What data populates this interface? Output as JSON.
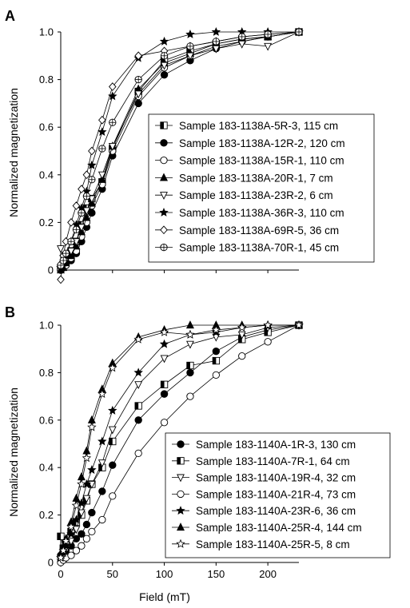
{
  "figure": {
    "xlabel": "Field (mT)"
  },
  "chart_data": [
    {
      "type": "line",
      "panel": "A",
      "ylabel": "Normalized magnetization",
      "xlim": [
        0,
        230
      ],
      "ylim": [
        0,
        1.0
      ],
      "yticks": [
        "0",
        "0.2",
        "0.4",
        "0.6",
        "0.8",
        "1.0"
      ],
      "legend_position": "right",
      "series": [
        {
          "name": "Sample 183-1138A-5R-3, 115 cm",
          "marker": "half-square",
          "x": [
            0,
            2.5,
            5,
            10,
            15,
            20,
            25,
            30,
            40,
            50,
            75,
            100,
            125,
            150,
            175,
            200,
            230
          ],
          "y": [
            0.01,
            0.02,
            0.04,
            0.08,
            0.12,
            0.19,
            0.26,
            0.3,
            0.37,
            0.51,
            0.75,
            0.88,
            0.92,
            0.95,
            0.97,
            0.98,
            1.0
          ]
        },
        {
          "name": "Sample 183-1138A-12R-2, 120 cm",
          "marker": "filled-circle",
          "x": [
            0,
            2.5,
            5,
            10,
            15,
            20,
            25,
            30,
            40,
            50,
            75,
            100,
            125,
            150,
            175,
            200,
            230
          ],
          "y": [
            0.0,
            0.01,
            0.02,
            0.04,
            0.07,
            0.12,
            0.18,
            0.24,
            0.34,
            0.48,
            0.7,
            0.82,
            0.88,
            0.93,
            0.96,
            0.98,
            1.0
          ]
        },
        {
          "name": "Sample 183-1138A-15R-1, 110 cm",
          "marker": "open-circle",
          "x": [
            0,
            2.5,
            5,
            10,
            15,
            20,
            25,
            30,
            40,
            50,
            75,
            100,
            125,
            150,
            175,
            200,
            230
          ],
          "y": [
            0.0,
            0.01,
            0.02,
            0.05,
            0.08,
            0.14,
            0.2,
            0.27,
            0.36,
            0.5,
            0.73,
            0.85,
            0.9,
            0.94,
            0.96,
            0.98,
            1.0
          ]
        },
        {
          "name": "Sample 183-1138A-20R-1, 7 cm",
          "marker": "filled-triangle",
          "x": [
            0,
            2.5,
            5,
            10,
            15,
            20,
            25,
            30,
            40,
            50,
            75,
            100,
            125,
            150,
            175,
            200,
            230
          ],
          "y": [
            0.0,
            0.01,
            0.03,
            0.06,
            0.1,
            0.16,
            0.22,
            0.28,
            0.38,
            0.52,
            0.76,
            0.87,
            0.91,
            0.95,
            0.97,
            0.98,
            1.0
          ]
        },
        {
          "name": "Sample 183-1138A-23R-2, 6 cm",
          "marker": "open-triangle-down",
          "x": [
            0,
            2.5,
            5,
            10,
            15,
            20,
            25,
            30,
            40,
            50,
            75,
            100,
            125,
            150,
            175,
            200,
            230
          ],
          "y": [
            0.09,
            0.05,
            0.06,
            0.08,
            0.12,
            0.18,
            0.25,
            0.3,
            0.4,
            0.52,
            0.74,
            0.86,
            0.9,
            0.93,
            0.95,
            0.94,
            1.0
          ]
        },
        {
          "name": "Sample 183-1138A-36R-3, 110 cm",
          "marker": "filled-star",
          "x": [
            0,
            2.5,
            5,
            10,
            15,
            20,
            25,
            30,
            40,
            50,
            75,
            100,
            125,
            150,
            175,
            200,
            230
          ],
          "y": [
            0.01,
            0.03,
            0.06,
            0.12,
            0.19,
            0.26,
            0.33,
            0.44,
            0.58,
            0.73,
            0.89,
            0.96,
            0.99,
            1.0,
            1.0,
            1.0,
            1.0
          ]
        },
        {
          "name": "Sample 183-1138A-69R-5, 36 cm",
          "marker": "open-diamond",
          "x": [
            0,
            2.5,
            5,
            10,
            15,
            20,
            25,
            30,
            40,
            50,
            75,
            100,
            125,
            150,
            175,
            200,
            230
          ],
          "y": [
            -0.04,
            0.06,
            0.12,
            0.2,
            0.27,
            0.34,
            0.4,
            0.5,
            0.63,
            0.77,
            0.9,
            0.92,
            0.94,
            0.96,
            0.98,
            0.99,
            1.0
          ]
        },
        {
          "name": "Sample 183-1138A-70R-1, 45 cm",
          "marker": "open-circle-bar",
          "x": [
            0,
            2.5,
            5,
            10,
            15,
            20,
            25,
            30,
            40,
            50,
            75,
            100,
            125,
            150,
            175,
            200,
            230
          ],
          "y": [
            0.02,
            0.04,
            0.07,
            0.12,
            0.17,
            0.24,
            0.31,
            0.38,
            0.51,
            0.62,
            0.8,
            0.9,
            0.94,
            0.96,
            0.98,
            0.99,
            1.0
          ]
        }
      ]
    },
    {
      "type": "line",
      "panel": "B",
      "ylabel": "Normalized magnetization",
      "xlabel": "Field (mT)",
      "xlim": [
        0,
        230
      ],
      "ylim": [
        0,
        1.0
      ],
      "xticks": [
        "0",
        "50",
        "100",
        "150",
        "200"
      ],
      "yticks": [
        "0",
        "0.2",
        "0.4",
        "0.6",
        "0.8",
        "1.0"
      ],
      "legend_position": "right",
      "series": [
        {
          "name": "Sample 183-1140A-1R-3, 130 cm",
          "marker": "filled-circle",
          "x": [
            0,
            2.5,
            5,
            10,
            15,
            20,
            25,
            30,
            40,
            50,
            75,
            100,
            125,
            150,
            175,
            200,
            230
          ],
          "y": [
            0.03,
            0.04,
            0.05,
            0.07,
            0.1,
            0.12,
            0.16,
            0.21,
            0.3,
            0.41,
            0.6,
            0.71,
            0.8,
            0.89,
            0.95,
            0.98,
            1.0
          ]
        },
        {
          "name": "Sample 183-1140A-7R-1, 64 cm",
          "marker": "half-square",
          "x": [
            0,
            2.5,
            5,
            10,
            15,
            20,
            25,
            30,
            40,
            50,
            75,
            100,
            125,
            150,
            175,
            200,
            230
          ],
          "y": [
            0.11,
            0.06,
            0.08,
            0.13,
            0.17,
            0.2,
            0.26,
            0.33,
            0.4,
            0.51,
            0.66,
            0.75,
            0.83,
            0.85,
            0.94,
            0.97,
            1.0
          ]
        },
        {
          "name": "Sample 183-1140A-19R-4, 32 cm",
          "marker": "open-triangle-down",
          "x": [
            0,
            2.5,
            5,
            10,
            15,
            20,
            25,
            30,
            40,
            50,
            75,
            100,
            125,
            150,
            175,
            200,
            230
          ],
          "y": [
            0.0,
            0.02,
            0.05,
            0.09,
            0.14,
            0.21,
            0.27,
            0.33,
            0.42,
            0.56,
            0.75,
            0.86,
            0.92,
            0.95,
            0.96,
            0.99,
            1.0
          ]
        },
        {
          "name": "Sample 183-1140A-21R-4, 73 cm",
          "marker": "open-circle",
          "x": [
            0,
            2.5,
            5,
            10,
            15,
            20,
            25,
            30,
            40,
            50,
            75,
            100,
            125,
            150,
            175,
            200,
            230
          ],
          "y": [
            0.0,
            0.01,
            0.02,
            0.03,
            0.05,
            0.07,
            0.1,
            0.13,
            0.18,
            0.28,
            0.46,
            0.59,
            0.7,
            0.79,
            0.87,
            0.93,
            1.0
          ]
        },
        {
          "name": "Sample 183-1140A-23R-6, 36 cm",
          "marker": "filled-star",
          "x": [
            0,
            2.5,
            5,
            10,
            15,
            20,
            25,
            30,
            40,
            50,
            75,
            100,
            125,
            150,
            175,
            200,
            230
          ],
          "y": [
            0.02,
            0.04,
            0.07,
            0.12,
            0.18,
            0.25,
            0.33,
            0.39,
            0.51,
            0.64,
            0.8,
            0.92,
            0.96,
            0.97,
            0.99,
            1.0,
            1.0
          ]
        },
        {
          "name": "Sample 183-1140A-25R-4, 144 cm",
          "marker": "filled-triangle",
          "x": [
            0,
            2.5,
            5,
            10,
            15,
            20,
            25,
            30,
            40,
            50,
            75,
            100,
            125,
            150,
            175,
            200,
            230
          ],
          "y": [
            0.03,
            0.06,
            0.1,
            0.17,
            0.27,
            0.36,
            0.47,
            0.6,
            0.73,
            0.84,
            0.95,
            0.98,
            1.0,
            1.0,
            1.0,
            1.0,
            1.0
          ]
        },
        {
          "name": "Sample 183-1140A-25R-5, 8 cm",
          "marker": "open-star",
          "x": [
            0,
            2.5,
            5,
            10,
            15,
            20,
            25,
            30,
            40,
            50,
            75,
            100,
            125,
            150,
            175,
            200,
            230
          ],
          "y": [
            0.02,
            0.05,
            0.09,
            0.15,
            0.24,
            0.33,
            0.44,
            0.57,
            0.71,
            0.82,
            0.94,
            0.97,
            0.96,
            0.98,
            0.99,
            1.0,
            1.0
          ]
        }
      ]
    }
  ]
}
